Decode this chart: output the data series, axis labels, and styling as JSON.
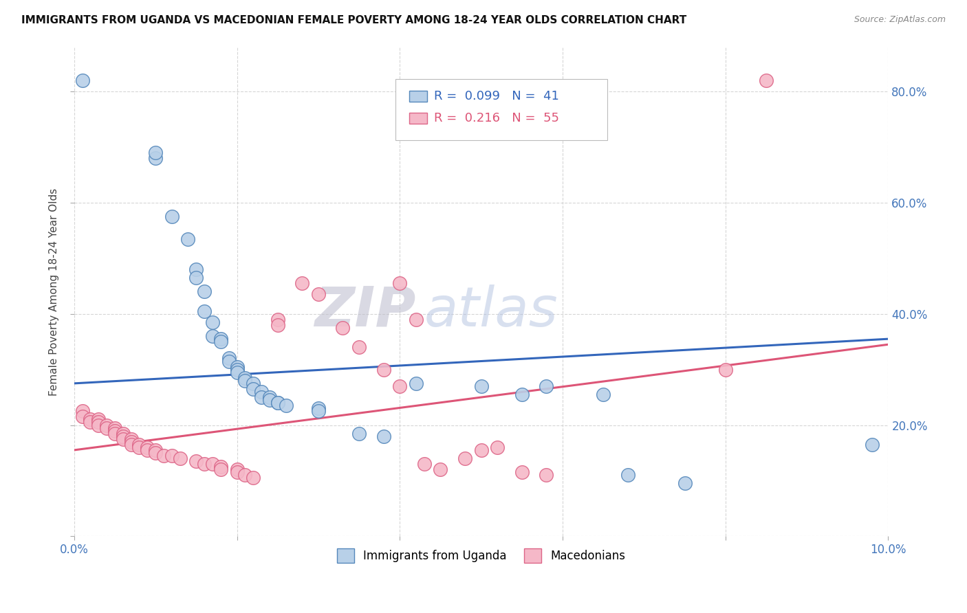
{
  "title": "IMMIGRANTS FROM UGANDA VS MACEDONIAN FEMALE POVERTY AMONG 18-24 YEAR OLDS CORRELATION CHART",
  "source": "Source: ZipAtlas.com",
  "ylabel": "Female Poverty Among 18-24 Year Olds",
  "xlim": [
    0.0,
    0.1
  ],
  "ylim": [
    0.0,
    0.88
  ],
  "ytick_positions": [
    0.0,
    0.2,
    0.4,
    0.6,
    0.8
  ],
  "ytick_labels": [
    "",
    "20.0%",
    "40.0%",
    "60.0%",
    "80.0%"
  ],
  "blue_color": "#b8d0e8",
  "blue_edge": "#5588bb",
  "pink_color": "#f5b8c8",
  "pink_edge": "#dd6688",
  "trend_blue": "#3366bb",
  "trend_pink": "#dd5577",
  "legend_label_blue": "Immigrants from Uganda",
  "legend_label_pink": "Macedonians",
  "watermark_zip": "ZIP",
  "watermark_atlas": "atlas",
  "blue_trend_y0": 0.275,
  "blue_trend_y1": 0.355,
  "pink_trend_y0": 0.155,
  "pink_trend_y1": 0.345,
  "blue_points": [
    [
      0.001,
      0.82
    ],
    [
      0.01,
      0.68
    ],
    [
      0.01,
      0.69
    ],
    [
      0.012,
      0.575
    ],
    [
      0.014,
      0.535
    ],
    [
      0.015,
      0.48
    ],
    [
      0.015,
      0.465
    ],
    [
      0.016,
      0.44
    ],
    [
      0.016,
      0.405
    ],
    [
      0.017,
      0.385
    ],
    [
      0.017,
      0.36
    ],
    [
      0.018,
      0.355
    ],
    [
      0.018,
      0.35
    ],
    [
      0.019,
      0.32
    ],
    [
      0.019,
      0.315
    ],
    [
      0.02,
      0.305
    ],
    [
      0.02,
      0.3
    ],
    [
      0.02,
      0.295
    ],
    [
      0.021,
      0.285
    ],
    [
      0.021,
      0.28
    ],
    [
      0.022,
      0.275
    ],
    [
      0.022,
      0.265
    ],
    [
      0.023,
      0.26
    ],
    [
      0.023,
      0.25
    ],
    [
      0.024,
      0.25
    ],
    [
      0.024,
      0.245
    ],
    [
      0.025,
      0.24
    ],
    [
      0.025,
      0.24
    ],
    [
      0.026,
      0.235
    ],
    [
      0.03,
      0.23
    ],
    [
      0.03,
      0.225
    ],
    [
      0.035,
      0.185
    ],
    [
      0.038,
      0.18
    ],
    [
      0.042,
      0.275
    ],
    [
      0.05,
      0.27
    ],
    [
      0.055,
      0.255
    ],
    [
      0.058,
      0.27
    ],
    [
      0.065,
      0.255
    ],
    [
      0.068,
      0.11
    ],
    [
      0.075,
      0.095
    ],
    [
      0.098,
      0.165
    ]
  ],
  "pink_points": [
    [
      0.001,
      0.225
    ],
    [
      0.001,
      0.215
    ],
    [
      0.002,
      0.21
    ],
    [
      0.002,
      0.205
    ],
    [
      0.003,
      0.21
    ],
    [
      0.003,
      0.205
    ],
    [
      0.003,
      0.2
    ],
    [
      0.004,
      0.2
    ],
    [
      0.004,
      0.195
    ],
    [
      0.005,
      0.195
    ],
    [
      0.005,
      0.19
    ],
    [
      0.005,
      0.185
    ],
    [
      0.006,
      0.185
    ],
    [
      0.006,
      0.18
    ],
    [
      0.006,
      0.175
    ],
    [
      0.007,
      0.175
    ],
    [
      0.007,
      0.17
    ],
    [
      0.007,
      0.165
    ],
    [
      0.008,
      0.165
    ],
    [
      0.008,
      0.16
    ],
    [
      0.009,
      0.16
    ],
    [
      0.009,
      0.155
    ],
    [
      0.01,
      0.155
    ],
    [
      0.01,
      0.15
    ],
    [
      0.011,
      0.145
    ],
    [
      0.012,
      0.145
    ],
    [
      0.013,
      0.14
    ],
    [
      0.015,
      0.135
    ],
    [
      0.016,
      0.13
    ],
    [
      0.017,
      0.13
    ],
    [
      0.018,
      0.125
    ],
    [
      0.018,
      0.12
    ],
    [
      0.02,
      0.12
    ],
    [
      0.02,
      0.115
    ],
    [
      0.021,
      0.11
    ],
    [
      0.022,
      0.105
    ],
    [
      0.025,
      0.39
    ],
    [
      0.025,
      0.38
    ],
    [
      0.028,
      0.455
    ],
    [
      0.03,
      0.435
    ],
    [
      0.033,
      0.375
    ],
    [
      0.035,
      0.34
    ],
    [
      0.038,
      0.3
    ],
    [
      0.04,
      0.27
    ],
    [
      0.04,
      0.455
    ],
    [
      0.042,
      0.39
    ],
    [
      0.043,
      0.13
    ],
    [
      0.045,
      0.12
    ],
    [
      0.048,
      0.14
    ],
    [
      0.05,
      0.155
    ],
    [
      0.052,
      0.16
    ],
    [
      0.055,
      0.115
    ],
    [
      0.058,
      0.11
    ],
    [
      0.08,
      0.3
    ],
    [
      0.085,
      0.82
    ]
  ]
}
